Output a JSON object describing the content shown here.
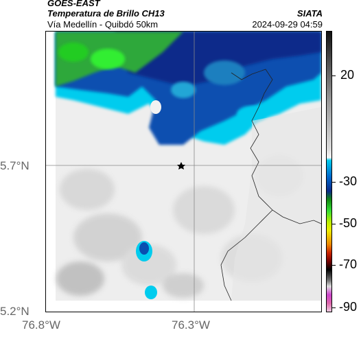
{
  "header": {
    "source": "GOES-EAST",
    "product": "Temperatura de Brillo CH13",
    "route": "Vía Medellín - Quibdó 50km",
    "org": "SIATA",
    "timestamp": "2024-09-29 04:59"
  },
  "axes": {
    "lat_top": "5.7°N",
    "lat_bottom": "5.2°N",
    "lon_left": "76.8°W",
    "lon_mid": "76.3°W"
  },
  "colorbar": {
    "ticks": [
      "20",
      "-30",
      "-50",
      "-70",
      "-90"
    ],
    "colors": {
      "grayscale_top": "#111111",
      "cyan": "#00ccee",
      "blue": "#0044aa",
      "green": "#22aa22",
      "yellow": "#eeee00",
      "red": "#cc2200",
      "black": "#000000",
      "magenta": "#cc44cc"
    }
  },
  "map": {
    "marker": "star-icon"
  }
}
